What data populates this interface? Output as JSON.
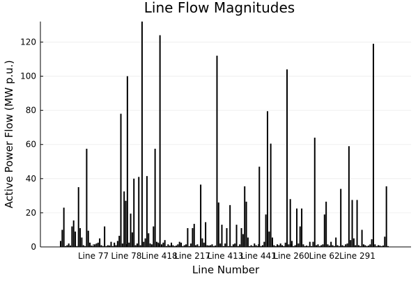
{
  "chart_data": {
    "type": "bar",
    "title": "Line Flow Magnitudes",
    "xlabel": "Line Number",
    "ylabel": "Active Power Flow (MW p.u.)",
    "ylim": [
      0,
      132
    ],
    "y_ticks": [
      0,
      20,
      40,
      60,
      80,
      100,
      120
    ],
    "x_tick_labels": [
      "Line 77",
      "Line 78",
      "Line 418",
      "Line 217",
      "Line 413",
      "Line 441",
      "Line 260",
      "Line 62",
      "Line 291"
    ],
    "grid": true,
    "legend": "none",
    "bar_color": "#000000",
    "values": [
      3.5,
      10,
      23,
      0.5,
      1,
      2,
      0.8,
      12,
      15.5,
      9,
      0.5,
      35,
      11,
      5.5,
      1,
      0.5,
      57.5,
      9.5,
      2.5,
      0.8,
      0.5,
      1.5,
      2,
      2.5,
      5,
      1,
      0.5,
      12,
      0.5,
      1,
      0.8,
      3,
      0.5,
      2.5,
      1,
      3.5,
      6.5,
      78,
      2,
      32.5,
      27,
      100,
      2.5,
      19.5,
      8.5,
      40,
      1,
      2,
      41,
      1,
      132,
      3,
      5,
      41.5,
      8,
      2,
      1.5,
      12,
      57.5,
      3,
      2.5,
      124,
      1.5,
      2.5,
      4,
      0.5,
      1.5,
      0.8,
      2.5,
      1,
      0.5,
      0.8,
      1.5,
      3,
      2.5,
      0.5,
      1,
      1.5,
      11,
      0.5,
      2,
      11,
      13.5,
      1,
      1.5,
      0.5,
      36.5,
      5,
      2.5,
      14.5,
      1,
      0.8,
      1,
      1.5,
      0.5,
      0.8,
      112,
      26,
      2,
      13,
      0.5,
      2,
      11,
      0.5,
      24.5,
      0.5,
      1.5,
      2,
      13,
      0.5,
      1.5,
      11,
      7.5,
      35.5,
      26.5,
      5.5,
      0.5,
      1,
      0.5,
      2,
      1,
      0.5,
      47,
      0.5,
      1,
      3,
      19,
      79.5,
      9,
      60.5,
      5.5,
      1,
      0.5,
      1.5,
      1,
      2,
      1,
      0.5,
      2.5,
      104,
      1.5,
      28,
      3.5,
      0.5,
      1,
      22.5,
      2,
      12,
      22.5,
      1.5,
      0.5,
      0.8,
      0.5,
      3,
      0.5,
      3,
      64,
      1,
      1.5,
      0.5,
      1,
      1.5,
      19,
      26.5,
      1.5,
      0.8,
      3,
      1,
      0.5,
      5.5,
      1,
      0.5,
      34,
      1,
      0.5,
      1.5,
      2,
      59,
      4,
      27.5,
      5,
      1,
      27.5,
      1,
      0.5,
      10,
      1.5,
      1,
      0.5,
      0.8,
      1.5,
      4.5,
      119,
      1.5,
      0.5,
      1,
      0.8,
      0.5,
      0.8,
      6,
      35.5,
      0.5
    ]
  }
}
